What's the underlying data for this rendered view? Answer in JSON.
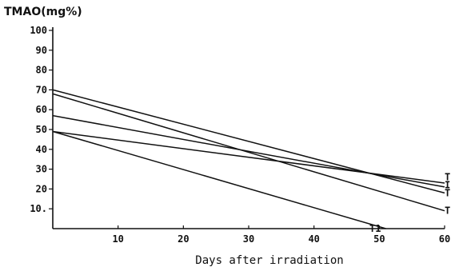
{
  "chart_data": {
    "type": "line",
    "title": "TMAO(mg%)",
    "xlabel": "Days after irradiation",
    "ylabel": "TMAO(mg%)",
    "xlim": [
      0,
      60
    ],
    "ylim": [
      0,
      100
    ],
    "x_ticks": [
      10,
      20,
      30,
      40,
      50,
      60
    ],
    "x_tick_labels": [
      "10",
      "20",
      "30",
      "40",
      "50",
      "60"
    ],
    "y_ticks": [
      10,
      20,
      30,
      40,
      50,
      60,
      70,
      80,
      90,
      100
    ],
    "y_tick_labels": [
      "10.",
      "20",
      "30",
      "40",
      "50",
      "60",
      "70",
      "80",
      "90",
      "100"
    ],
    "grid": false,
    "legend": "none",
    "series": [
      {
        "name": "T1",
        "x": [
          0,
          51
        ],
        "y": [
          49,
          0
        ]
      },
      {
        "name": "T",
        "x": [
          0,
          60
        ],
        "y": [
          68,
          9
        ]
      },
      {
        "name": "T",
        "x": [
          0,
          60
        ],
        "y": [
          70,
          18
        ]
      },
      {
        "name": "I",
        "x": [
          0,
          60
        ],
        "y": [
          57,
          21
        ]
      },
      {
        "name": "T",
        "x": [
          0,
          60
        ],
        "y": [
          49,
          23
        ]
      }
    ]
  }
}
